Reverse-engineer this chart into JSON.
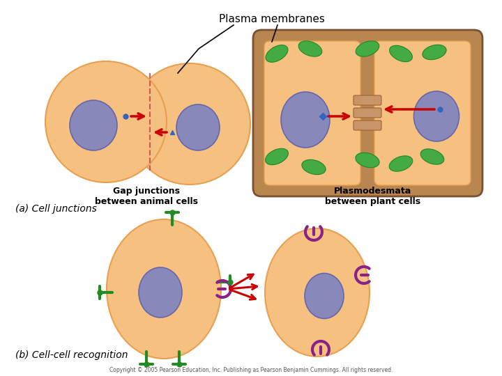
{
  "bg_color": "#ffffff",
  "cell_orange": "#F5C080",
  "cell_orange_edge": "#E8A050",
  "nucleus_color": "#8888BB",
  "nucleus_edge": "#6666AA",
  "plant_wall_color": "#B8864E",
  "plant_cell_inner": "#F5C080",
  "chloroplast_color": "#44AA44",
  "chloroplast_edge": "#228822",
  "plasmodesmata_color": "#C8956A",
  "plasmodesmata_edge": "#A06030",
  "arrow_color": "#CC0000",
  "blue_dot": "#3366BB",
  "dashed_line_color": "#CC4444",
  "title_text": "Plasma membranes",
  "label_gap": "Gap junctions\nbetween animal cells",
  "label_plasmo": "Plasmodesmata\nbetween plant cells",
  "label_a": "(a) Cell junctions",
  "label_b": "(b) Cell-cell recognition",
  "copyright": "Copyright © 2005 Pearson Education, Inc. Publishing as Pearson Benjamin Cummings. All rights reserved.",
  "green_receptor": "#228B22",
  "purple_receptor": "#882288"
}
